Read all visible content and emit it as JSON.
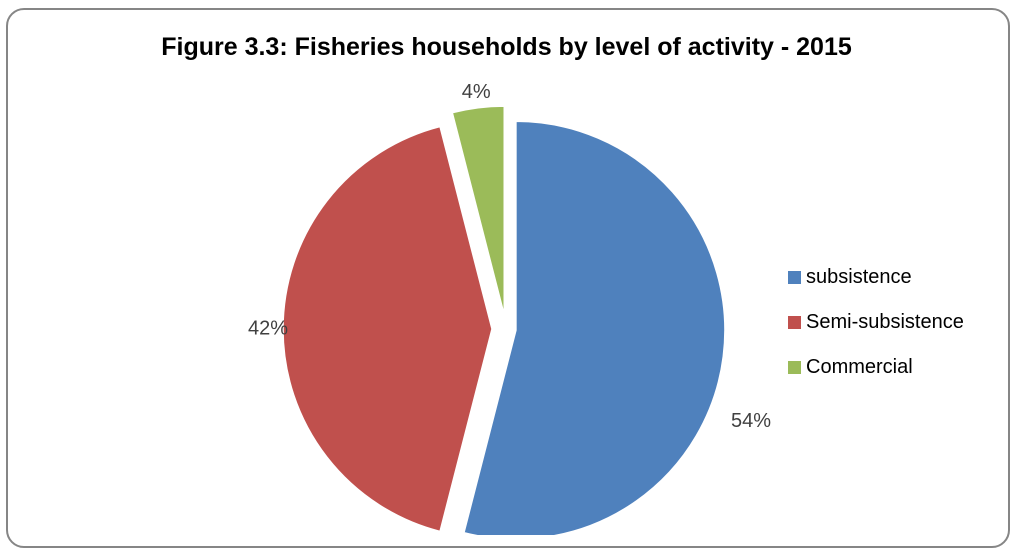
{
  "chart_data": {
    "type": "pie",
    "title": "Figure 3.3: Fisheries households by level of activity - 2015",
    "categories": [
      "subsistence",
      "Semi-subsistence",
      "Commercial"
    ],
    "values": [
      54,
      42,
      4
    ],
    "value_labels": [
      "54%",
      "42%",
      "4%"
    ],
    "colors": [
      "#4f81bd",
      "#c0504d",
      "#9bbb59"
    ],
    "exploded": true,
    "legend_position": "right"
  }
}
